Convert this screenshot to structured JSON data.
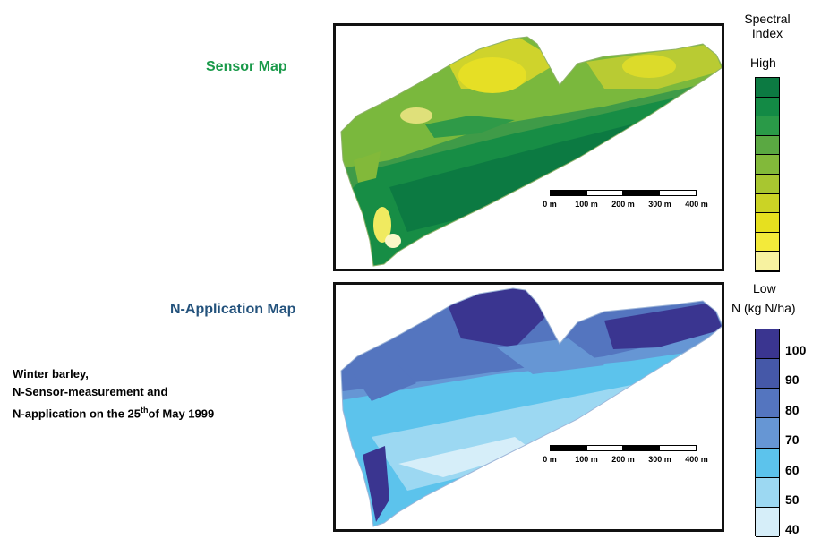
{
  "sensor_map": {
    "title": "Sensor Map",
    "scalebar_labels": [
      "0 m",
      "100 m",
      "200 m",
      "300 m",
      "400 m"
    ]
  },
  "n_application_map": {
    "title": "N-Application Map",
    "scalebar_labels": [
      "0 m",
      "100 m",
      "200 m",
      "300 m",
      "400 m"
    ]
  },
  "caption": {
    "line1": "Winter barley,",
    "line2": "N-Sensor-measurement and",
    "line3_prefix": "N-application on the 25",
    "line3_sup": "th",
    "line3_suffix": "of May 1999"
  },
  "spectral_legend": {
    "title_line1": "Spectral",
    "title_line2": "Index",
    "high_label": "High",
    "low_label": "Low",
    "colors": [
      "#0c7a42",
      "#138a45",
      "#2a9a48",
      "#5aa842",
      "#82b93a",
      "#a8c630",
      "#cbd325",
      "#e6e01f",
      "#f3ea3a",
      "#f7f2a0"
    ]
  },
  "n_legend": {
    "title": "N (kg N/ha)",
    "ticks": [
      "100",
      "90",
      "80",
      "70",
      "60",
      "50",
      "40"
    ],
    "colors": [
      "#3a3590",
      "#4558a8",
      "#5475bf",
      "#6696d4",
      "#5cc3ec",
      "#9cd8f2",
      "#d6eef9"
    ]
  }
}
